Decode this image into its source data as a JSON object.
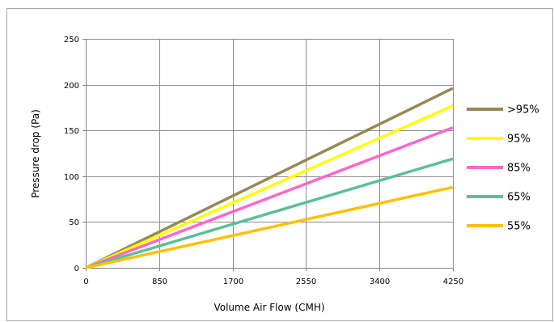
{
  "colors": {
    "border": "#a6a6a6",
    "grid": "#8c8c8c",
    "axis": "#808080"
  },
  "chart_data": {
    "type": "line",
    "title": "",
    "xlabel": "Volume Air Flow (CMH)",
    "ylabel": "Pressure drop (Pa)",
    "x": [
      0,
      4250
    ],
    "xlim": [
      0,
      4250
    ],
    "ylim": [
      0,
      250
    ],
    "x_ticks": [
      "0",
      "850",
      "1700",
      "2550",
      "3400",
      "4250"
    ],
    "y_ticks": [
      "0",
      "50",
      "100",
      "150",
      "200",
      "250"
    ],
    "grid": true,
    "legend_position": "right",
    "series": [
      {
        "name": ">95%",
        "color": "#948A54",
        "values": [
          0,
          196
        ]
      },
      {
        "name": "95%",
        "color": "#FFFF00",
        "values": [
          0,
          177
        ]
      },
      {
        "name": "85%",
        "color": "#FF66CC",
        "values": [
          0,
          153
        ]
      },
      {
        "name": "65%",
        "color": "#5CBF94",
        "values": [
          0,
          119
        ]
      },
      {
        "name": "55%",
        "color": "#FFC000",
        "values": [
          0,
          88
        ]
      }
    ]
  }
}
